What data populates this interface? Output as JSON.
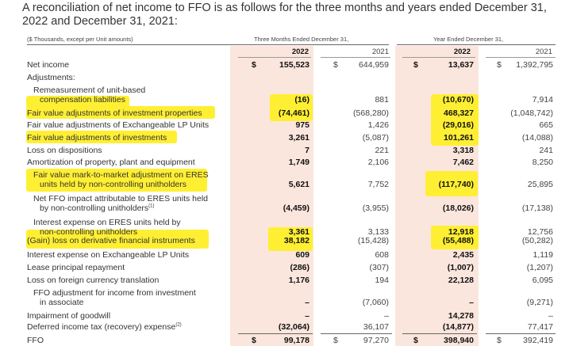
{
  "intro": "A reconciliation of net income to FFO is as follows for the three months and years ended December 31, 2022 and December 31, 2021:",
  "table": {
    "units_note": "($ Thousands, except per Unit amounts)",
    "group_three_months": "Three Months Ended December 31,",
    "group_year": "Year Ended December 31,",
    "years": [
      "2022",
      "2021",
      "2022",
      "2021"
    ],
    "currency": "$",
    "highlight_color": "#ffef33",
    "shade_color": "#fbe6dd",
    "rows": [
      {
        "label": [
          "Net income"
        ],
        "values": [
          "155,523",
          "644,959",
          "13,637",
          "1,392,795"
        ],
        "dollar": true
      },
      {
        "label": [
          "Adjustments:"
        ],
        "values": [
          "",
          "",
          "",
          ""
        ]
      },
      {
        "label": [
          "Remeasurement of unit-based",
          "compensation liabilities"
        ],
        "values": [
          "(16)",
          "881",
          "(10,670)",
          "7,914"
        ],
        "indent": true
      },
      {
        "label": [
          "Fair value adjustments of investment properties"
        ],
        "values": [
          "(74,461)",
          "(568,280)",
          "468,327",
          "(1,048,742)"
        ]
      },
      {
        "label": [
          "Fair value adjustments of Exchangeable LP Units"
        ],
        "values": [
          "975",
          "1,426",
          "(29,016)",
          "665"
        ]
      },
      {
        "label": [
          "Fair value adjustments of investments"
        ],
        "values": [
          "3,261",
          "(5,087)",
          "101,261",
          "(14,088)"
        ]
      },
      {
        "label": [
          "Loss on dispositions"
        ],
        "values": [
          "7",
          "221",
          "3,318",
          "241"
        ]
      },
      {
        "label": [
          "Amortization of property, plant and equipment"
        ],
        "values": [
          "1,749",
          "2,106",
          "7,462",
          "8,250"
        ]
      },
      {
        "label": [
          "Fair value mark-to-market adjustment on ERES",
          "units held by non-controlling unitholders"
        ],
        "values": [
          "5,621",
          "7,752",
          "(117,740)",
          "25,895"
        ],
        "indent": true
      },
      {
        "label": [
          "Net FFO impact attributable to ERES units held",
          "by non-controlling unitholders"
        ],
        "sup": "(1)",
        "values": [
          "(4,459)",
          "(3,955)",
          "(18,026)",
          "(17,138)"
        ],
        "indent": true
      },
      {
        "label": [
          "Interest expense on ERES units held by",
          "non-controlling unitholders"
        ],
        "values": [
          "3,361",
          "3,133",
          "12,918",
          "12,756"
        ],
        "indent": true
      },
      {
        "label": [
          "(Gain) loss on derivative financial instruments"
        ],
        "values": [
          "38,182",
          "(15,428)",
          "(55,488)",
          "(50,282)"
        ]
      },
      {
        "label": [
          "Interest expense on Exchangeable LP Units"
        ],
        "values": [
          "609",
          "608",
          "2,435",
          "1,119"
        ]
      },
      {
        "label": [
          "Lease principal repayment"
        ],
        "values": [
          "(286)",
          "(307)",
          "(1,007)",
          "(1,207)"
        ]
      },
      {
        "label": [
          "Loss on foreign currency translation"
        ],
        "values": [
          "1,176",
          "194",
          "22,128",
          "6,095"
        ]
      },
      {
        "label": [
          "FFO adjustment for income from investment",
          "in associate"
        ],
        "values": [
          "–",
          "(7,060)",
          "–",
          "(9,271)"
        ],
        "indent": true
      },
      {
        "label": [
          "Impairment of goodwill"
        ],
        "values": [
          "–",
          "–",
          "14,278",
          "–"
        ]
      },
      {
        "label": [
          "Deferred income tax (recovery) expense"
        ],
        "sup": "(2)",
        "values": [
          "(32,064)",
          "36,107",
          "(14,877)",
          "77,417"
        ]
      },
      {
        "label": [
          "FFO"
        ],
        "values": [
          "99,178",
          "97,270",
          "398,940",
          "392,419"
        ],
        "dollar": true
      }
    ]
  }
}
